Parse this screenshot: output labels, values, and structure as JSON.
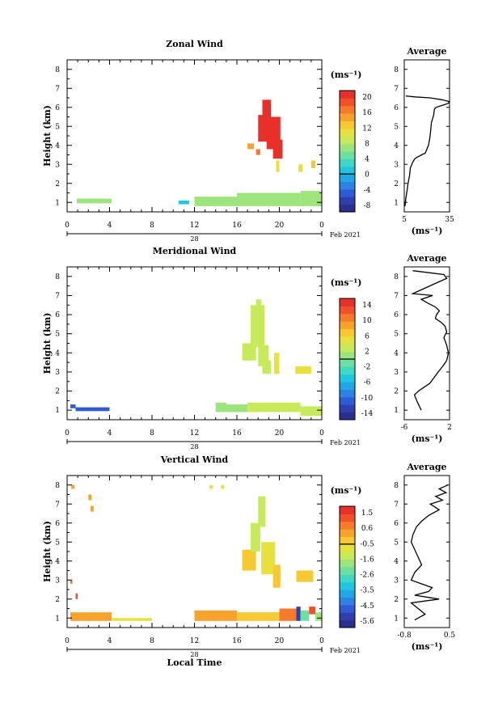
{
  "chart_data": [
    {
      "type": "heatmap",
      "title": "Zonal Wind",
      "ylabel": "Height (km)",
      "xticks": [
        "0",
        "4",
        "8",
        "12",
        "16",
        "20",
        "0"
      ],
      "yticks": [
        "1",
        "2",
        "3",
        "4",
        "5",
        "6",
        "7",
        "8"
      ],
      "xlim": [
        0,
        24
      ],
      "ylim": [
        0.5,
        8.5
      ],
      "day_label": "28",
      "date_label": "Feb 2021",
      "colorbar_unit": "(ms⁻¹)",
      "colorbar_ticks": [
        "20",
        "16",
        "12",
        "8",
        "4",
        "0",
        "-4",
        "-8"
      ],
      "colorbar_range": [
        -10,
        22
      ],
      "colorbar_zero_value": 0,
      "blocks": [
        {
          "x": [
            0.9,
            4.2
          ],
          "y": [
            0.95,
            1.2
          ],
          "value": 6.5
        },
        {
          "x": [
            10.5,
            11.5
          ],
          "y": [
            0.9,
            1.1
          ],
          "value": 0
        },
        {
          "x": [
            12.0,
            16.0
          ],
          "y": [
            0.8,
            1.3
          ],
          "value": 6.5
        },
        {
          "x": [
            16.0,
            22.0
          ],
          "y": [
            0.8,
            1.5
          ],
          "value": 7
        },
        {
          "x": [
            22.0,
            24.0
          ],
          "y": [
            0.8,
            1.6
          ],
          "value": 6.5
        },
        {
          "x": [
            17.0,
            17.6
          ],
          "y": [
            3.8,
            4.1
          ],
          "value": 14
        },
        {
          "x": [
            17.8,
            18.2
          ],
          "y": [
            3.5,
            3.8
          ],
          "value": 16
        },
        {
          "x": [
            18.0,
            18.9
          ],
          "y": [
            4.2,
            5.6
          ],
          "value": 22
        },
        {
          "x": [
            18.4,
            19.2
          ],
          "y": [
            5.2,
            6.4
          ],
          "value": 22
        },
        {
          "x": [
            18.8,
            20.1
          ],
          "y": [
            3.8,
            5.5
          ],
          "value": 22
        },
        {
          "x": [
            19.4,
            20.3
          ],
          "y": [
            3.3,
            4.3
          ],
          "value": 22
        },
        {
          "x": [
            19.7,
            20.0
          ],
          "y": [
            2.6,
            3.2
          ],
          "value": 11
        },
        {
          "x": [
            21.8,
            22.2
          ],
          "y": [
            2.6,
            3.0
          ],
          "value": 11
        },
        {
          "x": [
            23.0,
            23.4
          ],
          "y": [
            2.8,
            3.2
          ],
          "value": 12
        }
      ]
    },
    {
      "type": "heatmap",
      "title": "Meridional Wind",
      "ylabel": "Height (km)",
      "xticks": [
        "0",
        "4",
        "8",
        "12",
        "16",
        "20",
        "0"
      ],
      "yticks": [
        "1",
        "2",
        "3",
        "4",
        "5",
        "6",
        "7",
        "8"
      ],
      "xlim": [
        0,
        24
      ],
      "ylim": [
        0.5,
        8.5
      ],
      "day_label": "28",
      "date_label": "Feb 2021",
      "colorbar_unit": "(ms⁻¹)",
      "colorbar_ticks": [
        "14",
        "10",
        "6",
        "2",
        "-2",
        "-6",
        "-10",
        "-14"
      ],
      "colorbar_range": [
        -16,
        16
      ],
      "colorbar_zero_value": 0,
      "blocks": [
        {
          "x": [
            0.3,
            0.8
          ],
          "y": [
            1.1,
            1.3
          ],
          "value": -12
        },
        {
          "x": [
            0.8,
            4.0
          ],
          "y": [
            0.95,
            1.15
          ],
          "value": -12
        },
        {
          "x": [
            14.0,
            15.0
          ],
          "y": [
            0.9,
            1.4
          ],
          "value": 1
        },
        {
          "x": [
            15.0,
            17.0
          ],
          "y": [
            0.9,
            1.3
          ],
          "value": 0
        },
        {
          "x": [
            17.0,
            22.0
          ],
          "y": [
            0.9,
            1.4
          ],
          "value": 2
        },
        {
          "x": [
            22.0,
            24.0
          ],
          "y": [
            0.7,
            1.2
          ],
          "value": 3
        },
        {
          "x": [
            16.5,
            17.8
          ],
          "y": [
            3.6,
            4.5
          ],
          "value": 3
        },
        {
          "x": [
            17.3,
            18.6
          ],
          "y": [
            4.3,
            6.5
          ],
          "value": 3.5
        },
        {
          "x": [
            17.8,
            18.3
          ],
          "y": [
            6.3,
            6.8
          ],
          "value": 2
        },
        {
          "x": [
            18.0,
            19.0
          ],
          "y": [
            3.3,
            4.4
          ],
          "value": 2.5
        },
        {
          "x": [
            18.4,
            19.2
          ],
          "y": [
            2.9,
            3.6
          ],
          "value": 2
        },
        {
          "x": [
            19.5,
            20.0
          ],
          "y": [
            2.9,
            4.0
          ],
          "value": 4
        },
        {
          "x": [
            21.5,
            23.0
          ],
          "y": [
            2.9,
            3.3
          ],
          "value": 5
        }
      ]
    },
    {
      "type": "heatmap",
      "title": "Vertical Wind",
      "ylabel": "Height (km)",
      "xlabel": "Local Time",
      "xticks": [
        "0",
        "4",
        "8",
        "12",
        "16",
        "20",
        "0"
      ],
      "yticks": [
        "1",
        "2",
        "3",
        "4",
        "5",
        "6",
        "7",
        "8"
      ],
      "xlim": [
        0,
        24
      ],
      "ylim": [
        0.5,
        8.5
      ],
      "day_label": "28",
      "date_label": "Feb 2021",
      "colorbar_unit": "(ms⁻¹)",
      "colorbar_ticks": [
        "1.5",
        "0.6",
        "-0.5",
        "-1.6",
        "-2.6",
        "-3.5",
        "-4.5",
        "-5.6"
      ],
      "colorbar_range": [
        -6,
        2
      ],
      "colorbar_zero_value": -0.5,
      "blocks": [
        {
          "x": [
            0.4,
            0.7
          ],
          "y": [
            7.8,
            8.0
          ],
          "value": 0.3
        },
        {
          "x": [
            2.0,
            2.3
          ],
          "y": [
            7.2,
            7.5
          ],
          "value": 0.2
        },
        {
          "x": [
            2.2,
            2.5
          ],
          "y": [
            6.6,
            6.9
          ],
          "value": 0.1
        },
        {
          "x": [
            13.4,
            13.7
          ],
          "y": [
            7.8,
            8.0
          ],
          "value": -0.6
        },
        {
          "x": [
            14.5,
            14.8
          ],
          "y": [
            7.8,
            8.0
          ],
          "value": -0.6
        },
        {
          "x": [
            16.5,
            17.8
          ],
          "y": [
            3.5,
            4.6
          ],
          "value": -0.2
        },
        {
          "x": [
            17.3,
            18.2
          ],
          "y": [
            4.5,
            6.0
          ],
          "value": -1.1
        },
        {
          "x": [
            18.0,
            18.7
          ],
          "y": [
            5.8,
            7.4
          ],
          "value": -1.2
        },
        {
          "x": [
            18.3,
            19.6
          ],
          "y": [
            3.3,
            5.0
          ],
          "value": -0.9
        },
        {
          "x": [
            19.4,
            20.1
          ],
          "y": [
            2.6,
            3.8
          ],
          "value": -0.5
        },
        {
          "x": [
            21.6,
            23.2
          ],
          "y": [
            2.9,
            3.5
          ],
          "value": -0.4
        },
        {
          "x": [
            0.3,
            4.2
          ],
          "y": [
            0.85,
            1.3
          ],
          "value": 0.1
        },
        {
          "x": [
            4.2,
            8.0
          ],
          "y": [
            0.85,
            1.0
          ],
          "value": -0.6
        },
        {
          "x": [
            12.0,
            16.0
          ],
          "y": [
            0.85,
            1.4
          ],
          "value": 0.3
        },
        {
          "x": [
            16.0,
            20.0
          ],
          "y": [
            0.85,
            1.3
          ],
          "value": -0.1
        },
        {
          "x": [
            20.0,
            21.6
          ],
          "y": [
            0.85,
            1.5
          ],
          "value": 0.5
        },
        {
          "x": [
            21.6,
            22.0
          ],
          "y": [
            0.85,
            1.6
          ],
          "value": -5.5
        },
        {
          "x": [
            22.0,
            22.8
          ],
          "y": [
            0.85,
            1.4
          ],
          "value": -2.5
        },
        {
          "x": [
            22.8,
            23.4
          ],
          "y": [
            1.2,
            1.6
          ],
          "value": 1.2
        },
        {
          "x": [
            23.4,
            24.0
          ],
          "y": [
            0.85,
            1.3
          ],
          "value": -1.6
        },
        {
          "x": [
            0.8,
            1.0
          ],
          "y": [
            2.0,
            2.3
          ],
          "value": 1.0
        },
        {
          "x": [
            0.3,
            0.5
          ],
          "y": [
            2.8,
            3.0
          ],
          "value": 0.8
        }
      ]
    },
    {
      "type": "line",
      "title": "Average",
      "xlabel": "(ms⁻¹)",
      "xticks": [
        "5",
        "35"
      ],
      "xlim": [
        5,
        35
      ],
      "yticks": [
        "1",
        "2",
        "3",
        "4",
        "5",
        "6",
        "7",
        "8"
      ],
      "ylim": [
        0.5,
        8.5
      ],
      "x": [
        5.5,
        6.0,
        6.8,
        7.5,
        8.5,
        9.0,
        10.5,
        12.0,
        14.0,
        16.5,
        19.0,
        20.0,
        21.0,
        22.0,
        22.5,
        23.0,
        24.5,
        25.0,
        26.0,
        30.0,
        34.0,
        36.0,
        30.0,
        22.0,
        12.0,
        6.0
      ],
      "y": [
        0.8,
        1.2,
        1.6,
        2.0,
        2.4,
        2.8,
        3.1,
        3.3,
        3.4,
        3.5,
        3.6,
        3.8,
        4.0,
        4.4,
        4.8,
        5.2,
        5.6,
        5.9,
        6.0,
        6.1,
        6.2,
        6.3,
        6.4,
        6.5,
        6.55,
        6.6
      ]
    },
    {
      "type": "line",
      "title": "Average",
      "xlabel": "(ms⁻¹)",
      "xticks": [
        "-6",
        "2"
      ],
      "xlim": [
        -6,
        2
      ],
      "yticks": [
        "1",
        "2",
        "3",
        "4",
        "5",
        "6",
        "7",
        "8"
      ],
      "ylim": [
        0.5,
        8.5
      ],
      "x": [
        -3.0,
        -3.8,
        -4.2,
        -3.5,
        -2.5,
        -1.5,
        -1.0,
        -0.5,
        0.0,
        0.8,
        1.5,
        1.8,
        1.5,
        1.0,
        1.5,
        1.2,
        0.5,
        -0.5,
        -0.3,
        0.2,
        -0.5,
        -1.8,
        -3.0,
        -1.0,
        -4.5,
        -3.0,
        -1.5,
        0.0,
        1.5,
        1.0,
        -4.5
      ],
      "y": [
        1.0,
        1.5,
        1.8,
        2.0,
        2.2,
        2.4,
        2.6,
        2.8,
        3.0,
        3.3,
        3.6,
        4.0,
        4.4,
        4.8,
        5.1,
        5.4,
        5.6,
        5.8,
        6.0,
        6.2,
        6.4,
        6.6,
        6.8,
        7.0,
        7.1,
        7.3,
        7.5,
        7.7,
        7.9,
        8.1,
        8.3
      ]
    },
    {
      "type": "line",
      "title": "Average",
      "xlabel": "(ms⁻¹)",
      "xticks": [
        "-0.8",
        "0.5"
      ],
      "xlim": [
        -0.8,
        0.5
      ],
      "yticks": [
        "1",
        "2",
        "3",
        "4",
        "5",
        "6",
        "7",
        "8"
      ],
      "ylim": [
        0.5,
        8.5
      ],
      "x": [
        -0.5,
        -0.2,
        -0.4,
        -0.6,
        0.2,
        -0.5,
        -0.1,
        0.0,
        -0.3,
        -0.6,
        -0.5,
        -0.3,
        -0.4,
        -0.5,
        -0.6,
        -0.55,
        -0.45,
        -0.3,
        -0.1,
        0.2,
        -0.05,
        0.3,
        0.1,
        0.4,
        0.2,
        0.45
      ],
      "y": [
        0.9,
        1.2,
        1.5,
        1.8,
        2.0,
        2.2,
        2.4,
        2.6,
        2.8,
        3.0,
        3.4,
        3.8,
        4.2,
        4.6,
        5.0,
        5.4,
        5.8,
        6.1,
        6.4,
        6.7,
        7.0,
        7.2,
        7.4,
        7.6,
        7.8,
        8.0
      ]
    }
  ]
}
